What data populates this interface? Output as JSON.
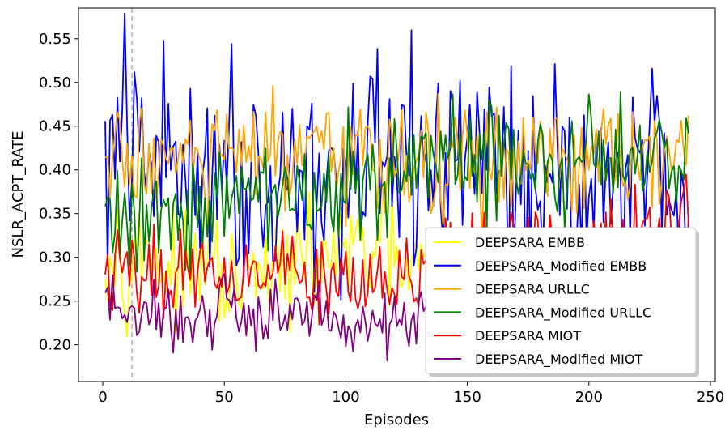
{
  "chart_data": {
    "type": "line",
    "xlabel": "Episodes",
    "ylabel": "NSLR_ACPT_RATE",
    "xlim": [
      -10,
      252
    ],
    "ylim": [
      0.158,
      0.585
    ],
    "xticks": [
      0,
      50,
      100,
      150,
      200,
      250
    ],
    "xtick_labels": [
      "0",
      "50",
      "100",
      "150",
      "200",
      "250"
    ],
    "yticks": [
      0.2,
      0.25,
      0.3,
      0.35,
      0.4,
      0.45,
      0.5,
      0.55
    ],
    "ytick_labels": [
      "0.20",
      "0.25",
      "0.30",
      "0.35",
      "0.40",
      "0.45",
      "0.50",
      "0.55"
    ],
    "vline_x": 12,
    "legend_position": "lower right",
    "grid": false,
    "x_start": 1,
    "series": [
      {
        "name": "DEEPSARA EMBB",
        "color": "#ffff00",
        "anchors": [
          [
            1,
            0.33
          ],
          [
            3,
            0.3
          ],
          [
            6,
            0.32
          ],
          [
            9,
            0.29
          ],
          [
            12,
            0.31
          ],
          [
            16,
            0.3
          ],
          [
            20,
            0.32
          ],
          [
            25,
            0.28
          ],
          [
            30,
            0.29
          ],
          [
            35,
            0.27
          ],
          [
            40,
            0.3
          ],
          [
            45,
            0.29
          ],
          [
            50,
            0.27
          ],
          [
            55,
            0.26
          ],
          [
            60,
            0.28
          ],
          [
            65,
            0.27
          ],
          [
            70,
            0.29
          ],
          [
            75,
            0.28
          ],
          [
            80,
            0.3
          ],
          [
            85,
            0.29
          ],
          [
            90,
            0.3
          ],
          [
            95,
            0.31
          ],
          [
            100,
            0.3
          ],
          [
            105,
            0.31
          ],
          [
            110,
            0.3
          ],
          [
            115,
            0.32
          ],
          [
            120,
            0.3
          ],
          [
            125,
            0.28
          ],
          [
            130,
            0.29
          ],
          [
            135,
            0.27
          ]
        ],
        "noise": 0.03
      },
      {
        "name": "DEEPSARA_Modified EMBB",
        "color": "#0000ff",
        "anchors": [
          [
            1,
            0.37
          ],
          [
            3,
            0.44
          ],
          [
            6,
            0.4
          ],
          [
            9,
            0.47
          ],
          [
            12,
            0.42
          ],
          [
            15,
            0.4
          ],
          [
            20,
            0.41
          ],
          [
            25,
            0.42
          ],
          [
            30,
            0.4
          ],
          [
            40,
            0.41
          ],
          [
            50,
            0.42
          ],
          [
            60,
            0.4
          ],
          [
            70,
            0.39
          ],
          [
            80,
            0.4
          ],
          [
            90,
            0.39
          ],
          [
            100,
            0.38
          ],
          [
            110,
            0.4
          ],
          [
            120,
            0.39
          ],
          [
            130,
            0.4
          ],
          [
            140,
            0.41
          ],
          [
            150,
            0.42
          ],
          [
            157,
            0.44
          ],
          [
            160,
            0.4
          ],
          [
            170,
            0.39
          ],
          [
            180,
            0.4
          ],
          [
            190,
            0.39
          ],
          [
            200,
            0.38
          ],
          [
            210,
            0.4
          ],
          [
            220,
            0.39
          ],
          [
            229,
            0.43
          ],
          [
            235,
            0.38
          ],
          [
            239,
            0.365
          ],
          [
            241,
            0.36
          ]
        ],
        "noise": 0.06
      },
      {
        "name": "DEEPSARA URLLC",
        "color": "#ffa500",
        "anchors": [
          [
            1,
            0.39
          ],
          [
            3,
            0.42
          ],
          [
            6,
            0.41
          ],
          [
            10,
            0.4
          ],
          [
            15,
            0.42
          ],
          [
            20,
            0.41
          ],
          [
            25,
            0.42
          ],
          [
            30,
            0.41
          ],
          [
            40,
            0.4
          ],
          [
            50,
            0.42
          ],
          [
            60,
            0.41
          ],
          [
            70,
            0.42
          ],
          [
            80,
            0.41
          ],
          [
            90,
            0.4
          ],
          [
            100,
            0.41
          ],
          [
            110,
            0.42
          ],
          [
            120,
            0.42
          ],
          [
            130,
            0.41
          ],
          [
            140,
            0.4
          ],
          [
            150,
            0.41
          ],
          [
            160,
            0.41
          ],
          [
            170,
            0.4
          ],
          [
            180,
            0.41
          ],
          [
            190,
            0.4
          ],
          [
            200,
            0.4
          ],
          [
            210,
            0.41
          ],
          [
            220,
            0.4
          ],
          [
            230,
            0.41
          ],
          [
            238,
            0.42
          ],
          [
            241,
            0.46
          ]
        ],
        "noise": 0.035
      },
      {
        "name": "DEEPSARA_Modified URLLC",
        "color": "#008000",
        "anchors": [
          [
            1,
            0.36
          ],
          [
            4,
            0.33
          ],
          [
            8,
            0.34
          ],
          [
            12,
            0.35
          ],
          [
            20,
            0.36
          ],
          [
            30,
            0.35
          ],
          [
            40,
            0.37
          ],
          [
            50,
            0.35
          ],
          [
            60,
            0.37
          ],
          [
            70,
            0.38
          ],
          [
            80,
            0.37
          ],
          [
            90,
            0.38
          ],
          [
            100,
            0.38
          ],
          [
            110,
            0.39
          ],
          [
            120,
            0.39
          ],
          [
            130,
            0.4
          ],
          [
            140,
            0.41
          ],
          [
            150,
            0.41
          ],
          [
            160,
            0.41
          ],
          [
            170,
            0.41
          ],
          [
            180,
            0.41
          ],
          [
            190,
            0.4
          ],
          [
            200,
            0.41
          ],
          [
            210,
            0.42
          ],
          [
            220,
            0.42
          ],
          [
            230,
            0.43
          ],
          [
            236,
            0.4
          ],
          [
            239,
            0.42
          ],
          [
            241,
            0.43
          ]
        ],
        "noise": 0.035
      },
      {
        "name": "DEEPSARA MIOT",
        "color": "#ff0000",
        "anchors": [
          [
            1,
            0.3
          ],
          [
            3,
            0.27
          ],
          [
            6,
            0.28
          ],
          [
            10,
            0.29
          ],
          [
            13,
            0.27
          ],
          [
            18,
            0.29
          ],
          [
            25,
            0.27
          ],
          [
            30,
            0.29
          ],
          [
            35,
            0.28
          ],
          [
            40,
            0.3
          ],
          [
            45,
            0.29
          ],
          [
            50,
            0.28
          ],
          [
            55,
            0.29
          ],
          [
            60,
            0.3
          ],
          [
            65,
            0.28
          ],
          [
            70,
            0.29
          ],
          [
            80,
            0.28
          ],
          [
            90,
            0.28
          ],
          [
            100,
            0.28
          ],
          [
            110,
            0.29
          ],
          [
            120,
            0.29
          ],
          [
            130,
            0.28
          ],
          [
            140,
            0.29
          ],
          [
            150,
            0.29
          ],
          [
            160,
            0.3
          ],
          [
            170,
            0.3
          ],
          [
            180,
            0.31
          ],
          [
            190,
            0.31
          ],
          [
            200,
            0.31
          ],
          [
            210,
            0.31
          ],
          [
            220,
            0.32
          ],
          [
            230,
            0.32
          ],
          [
            235,
            0.33
          ],
          [
            238,
            0.36
          ],
          [
            241,
            0.37
          ]
        ],
        "noise": 0.025
      },
      {
        "name": "DEEPSARA_Modified MIOT",
        "color": "#800080",
        "anchors": [
          [
            1,
            0.25
          ],
          [
            4,
            0.24
          ],
          [
            8,
            0.235
          ],
          [
            12,
            0.235
          ],
          [
            20,
            0.235
          ],
          [
            30,
            0.225
          ],
          [
            40,
            0.235
          ],
          [
            50,
            0.235
          ],
          [
            60,
            0.23
          ],
          [
            70,
            0.24
          ],
          [
            80,
            0.23
          ],
          [
            90,
            0.23
          ],
          [
            100,
            0.225
          ],
          [
            110,
            0.23
          ],
          [
            120,
            0.225
          ],
          [
            130,
            0.235
          ],
          [
            135,
            0.25
          ]
        ],
        "noise": 0.02
      }
    ]
  }
}
